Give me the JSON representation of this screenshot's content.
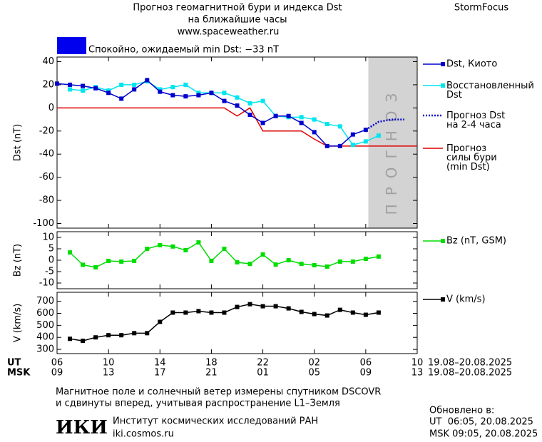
{
  "header": {
    "title": "Прогноз геомагнитной бури и индекса Dst",
    "subtitle": "на ближайшие часы",
    "url": "www.spaceweather.ru",
    "brand": "StormFocus"
  },
  "status": {
    "text": "Спокойно, ожидаемый min Dst: −33 nT",
    "color": "#0000ee"
  },
  "chart_data": [
    {
      "type": "line",
      "ylabel": "Dst (nT)",
      "xlim": [
        0,
        28
      ],
      "ylim": [
        -104,
        44
      ],
      "yticks": [
        40,
        20,
        0,
        -20,
        -40,
        -60,
        -80,
        -100
      ],
      "forecast_band": {
        "label": "ПРОГНОЗ",
        "from": 24.2,
        "to": 28
      },
      "series": [
        {
          "name": "Прогноз\nсилы бури\n(min Dst)",
          "color": "#e00000",
          "marker": "none",
          "style": "solid",
          "x": [
            0,
            1,
            2,
            3,
            4,
            5,
            6,
            7,
            8,
            9,
            10,
            11,
            12,
            13,
            14,
            15,
            16,
            17,
            18,
            19,
            20,
            21,
            22,
            23,
            24,
            25,
            26,
            27,
            28
          ],
          "values": [
            0,
            0,
            0,
            0,
            0,
            0,
            0,
            0,
            0,
            0,
            0,
            0,
            0,
            0,
            -7,
            0,
            -20,
            -20,
            -20,
            -20,
            -27,
            -33,
            -33,
            -33,
            -33,
            -33,
            -33,
            -33,
            -33
          ]
        },
        {
          "name": "Восстановленный\nDst",
          "color": "#00e5ee",
          "marker": "square",
          "style": "solid",
          "x": [
            1,
            2,
            3,
            4,
            5,
            6,
            7,
            8,
            9,
            10,
            11,
            12,
            13,
            14,
            15,
            16,
            17,
            18,
            19,
            20,
            21,
            22,
            23,
            24,
            25
          ],
          "values": [
            16,
            15,
            18,
            15,
            20,
            20,
            23,
            16,
            18,
            20,
            13,
            13,
            13,
            9,
            4,
            6,
            -7,
            -8,
            -8,
            -10,
            -14,
            -16,
            -32,
            -29,
            -24
          ]
        },
        {
          "name": "Dst, Киото",
          "color": "#0000cc",
          "marker": "square",
          "style": "solid",
          "x": [
            0,
            1,
            2,
            3,
            4,
            5,
            6,
            7,
            8,
            9,
            10,
            11,
            12,
            13,
            14,
            15,
            16,
            17,
            18,
            19,
            20,
            21,
            22,
            23,
            24
          ],
          "values": [
            21,
            20,
            19,
            17,
            13,
            8,
            16,
            24,
            14,
            11,
            10,
            11,
            13,
            6,
            2,
            -6,
            -13,
            -7,
            -7,
            -13,
            -21,
            -33,
            -33,
            -23,
            -19
          ]
        },
        {
          "name": "Прогноз Dst\nна 2-4 часа",
          "color": "#0000cc",
          "marker": "none",
          "style": "dotted",
          "x": [
            24,
            25,
            26,
            27
          ],
          "values": [
            -19,
            -12,
            -10,
            -10
          ]
        }
      ]
    },
    {
      "type": "line",
      "ylabel": "Bz (nT)",
      "xlim": [
        0,
        28
      ],
      "ylim": [
        -12.5,
        12.5
      ],
      "yticks": [
        10,
        5,
        0,
        -5,
        -10
      ],
      "series": [
        {
          "name": "Bz (nT, GSM)",
          "color": "#00dd00",
          "marker": "square",
          "style": "solid",
          "x": [
            1,
            2,
            3,
            4,
            5,
            6,
            7,
            8,
            9,
            10,
            11,
            12,
            13,
            14,
            15,
            16,
            17,
            18,
            19,
            20,
            21,
            22,
            23,
            24,
            25
          ],
          "values": [
            3.4,
            -2,
            -3.1,
            -0.3,
            -0.6,
            -0.3,
            5,
            6.6,
            6,
            4.4,
            7.8,
            -0.3,
            5,
            -0.9,
            -1.6,
            2.5,
            -1.9,
            0,
            -1.6,
            -2.2,
            -2.8,
            -0.6,
            -0.6,
            0.6,
            1.6
          ]
        }
      ]
    },
    {
      "type": "line",
      "ylabel": "V (km/s)",
      "xlim": [
        0,
        28
      ],
      "ylim": [
        265,
        775
      ],
      "yticks": [
        700,
        600,
        500,
        400,
        300
      ],
      "xticks": [
        {
          "value": 0,
          "label": "06"
        },
        {
          "value": 4,
          "label": "10"
        },
        {
          "value": 8,
          "label": "14"
        },
        {
          "value": 12,
          "label": "18"
        },
        {
          "value": 16,
          "label": "22"
        },
        {
          "value": 20,
          "label": "02"
        },
        {
          "value": 24,
          "label": "06"
        },
        {
          "value": 28,
          "label": "10"
        }
      ],
      "xticks_msk": [
        {
          "value": 0,
          "label": "09"
        },
        {
          "value": 4,
          "label": "13"
        },
        {
          "value": 8,
          "label": "17"
        },
        {
          "value": 12,
          "label": "21"
        },
        {
          "value": 16,
          "label": "01"
        },
        {
          "value": 20,
          "label": "05"
        },
        {
          "value": 24,
          "label": "09"
        },
        {
          "value": 28,
          "label": "13"
        }
      ],
      "xaxis_ut": "UT",
      "xaxis_msk": "MSK",
      "date_range_ut": "19.08–20.08.2025",
      "date_range_msk": "19.08–20.08.2025",
      "series": [
        {
          "name": "V (km/s)",
          "color": "#000000",
          "marker": "square",
          "style": "solid",
          "x": [
            1,
            2,
            3,
            4,
            5,
            6,
            7,
            8,
            9,
            10,
            11,
            12,
            13,
            14,
            15,
            16,
            17,
            18,
            19,
            20,
            21,
            22,
            23,
            24,
            25
          ],
          "values": [
            388,
            371,
            400,
            418,
            418,
            435,
            435,
            529,
            606,
            606,
            618,
            606,
            606,
            653,
            676,
            659,
            659,
            641,
            612,
            594,
            582,
            629,
            606,
            588,
            606
          ]
        }
      ]
    }
  ],
  "footer": {
    "note": [
      "Магнитное поле и солнечный ветер измерены спутником DSCOVR",
      "и сдвинуты вперед, учитывая распространение L1–Земля"
    ],
    "logo": "ИКИ",
    "institute": "Институт космических исследований РАН",
    "site": "iki.cosmos.ru",
    "updated": [
      "Обновлено в:",
      "UT  06:05, 20.08.2025",
      "MSK 09:05, 20.08.2025"
    ]
  }
}
